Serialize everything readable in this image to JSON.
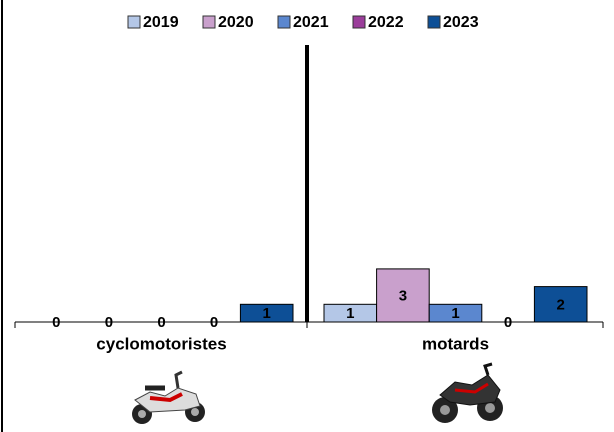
{
  "chart_data": {
    "type": "bar",
    "categories": [
      "cyclomotoristes",
      "motards"
    ],
    "series": [
      {
        "name": "2019",
        "color": "#b4c7e7",
        "values": [
          0,
          1
        ]
      },
      {
        "name": "2020",
        "color": "#c9a0cc",
        "values": [
          0,
          3
        ]
      },
      {
        "name": "2021",
        "color": "#5b87cf",
        "values": [
          0,
          1
        ]
      },
      {
        "name": "2022",
        "color": "#9b3e9b",
        "values": [
          0,
          0
        ]
      },
      {
        "name": "2023",
        "color": "#0d4f96",
        "values": [
          1,
          2
        ]
      }
    ],
    "legend": "top"
  }
}
